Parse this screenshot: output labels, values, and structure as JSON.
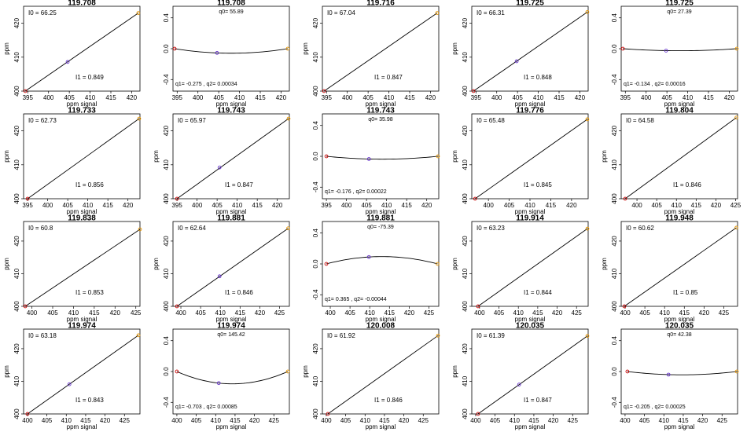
{
  "figure": {
    "axis_label_x": "ppm signal",
    "axis_label_y": "ppm",
    "colors": {
      "line": "#000000",
      "point_low": "#cc0000",
      "point_mid": "#6633cc",
      "point_high": "#e69500"
    }
  },
  "chart_data": [
    {
      "type": "line",
      "title": "119.708",
      "xlabel": "ppm signal",
      "ylabel": "ppm",
      "xlim": [
        394,
        422
      ],
      "ylim": [
        400,
        425
      ],
      "xticks": [
        "395",
        "400",
        "405",
        "410",
        "415",
        "420"
      ],
      "yticks": [
        "400",
        "410",
        "420"
      ],
      "x": [
        394.4,
        404.6,
        421.6
      ],
      "y": [
        400.0,
        408.6,
        423.0
      ],
      "label_tl": "I0 =  66.25",
      "label_br": "I1 =  0.849"
    },
    {
      "type": "line",
      "title": "119.708",
      "xlabel": "ppm signal",
      "ylabel": "",
      "xlim": [
        394,
        422
      ],
      "ylim": [
        -0.55,
        0.55
      ],
      "xticks": [
        "395",
        "400",
        "405",
        "410",
        "415",
        "420"
      ],
      "yticks": [
        "-0.4",
        "0.0",
        "0.4"
      ],
      "x": [
        394.4,
        404.6,
        421.6
      ],
      "y": [
        0.0,
        -0.055,
        0.0
      ],
      "label_top": "q0= 55.89",
      "label_bl": "q1= -0.275 ,  q2= 0.00034"
    },
    {
      "type": "line",
      "title": "119.716",
      "xlabel": "ppm signal",
      "ylabel": "ppm",
      "xlim": [
        394,
        422
      ],
      "ylim": [
        400,
        425
      ],
      "xticks": [
        "395",
        "400",
        "405",
        "410",
        "415",
        "420"
      ],
      "yticks": [
        "400",
        "410",
        "420"
      ],
      "x": [
        394.4,
        421.6
      ],
      "y": [
        400.0,
        423.0
      ],
      "label_tl": "I0 =  67.04",
      "label_br": "I1 =  0.847"
    },
    {
      "type": "line",
      "title": "119.725",
      "xlabel": "ppm signal",
      "ylabel": "ppm",
      "xlim": [
        394,
        422
      ],
      "ylim": [
        400,
        425
      ],
      "xticks": [
        "395",
        "400",
        "405",
        "410",
        "415",
        "420"
      ],
      "yticks": [
        "400",
        "410",
        "420"
      ],
      "x": [
        394.4,
        404.8,
        421.8
      ],
      "y": [
        400.0,
        408.8,
        423.3
      ],
      "label_tl": "I0 =  66.31",
      "label_br": "I1 =  0.848"
    },
    {
      "type": "line",
      "title": "119.725",
      "xlabel": "ppm signal",
      "ylabel": "",
      "xlim": [
        394,
        422
      ],
      "ylim": [
        -0.55,
        0.55
      ],
      "xticks": [
        "395",
        "400",
        "405",
        "410",
        "415",
        "420"
      ],
      "yticks": [
        "-0.4",
        "0.0",
        "0.4"
      ],
      "x": [
        394.4,
        404.8,
        421.8
      ],
      "y": [
        0.0,
        -0.025,
        0.0
      ],
      "label_top": "q0= 27.39",
      "label_bl": "q1= -0.134 ,  q2= 0.00016"
    },
    {
      "type": "line",
      "title": "119.733",
      "xlabel": "ppm signal",
      "ylabel": "ppm",
      "xlim": [
        394,
        423
      ],
      "ylim": [
        400,
        425
      ],
      "xticks": [
        "395",
        "400",
        "405",
        "410",
        "415",
        "420"
      ],
      "yticks": [
        "400",
        "410",
        "420"
      ],
      "x": [
        395.0,
        422.8
      ],
      "y": [
        400.0,
        423.6
      ],
      "label_tl": "I0 =  62.73",
      "label_br": "I1 =  0.856"
    },
    {
      "type": "line",
      "title": "119.743",
      "xlabel": "ppm signal",
      "ylabel": "ppm",
      "xlim": [
        394,
        423
      ],
      "ylim": [
        400,
        425
      ],
      "xticks": [
        "395",
        "400",
        "405",
        "410",
        "415",
        "420"
      ],
      "yticks": [
        "400",
        "410",
        "420"
      ],
      "x": [
        395.0,
        405.6,
        422.8
      ],
      "y": [
        400.0,
        409.2,
        423.6
      ],
      "label_tl": "I0 =  65.97",
      "label_br": "I1 =  0.847"
    },
    {
      "type": "line",
      "title": "119.743",
      "xlabel": "ppm signal",
      "ylabel": "",
      "xlim": [
        394,
        423
      ],
      "ylim": [
        -0.55,
        0.55
      ],
      "xticks": [
        "395",
        "400",
        "405",
        "410",
        "415",
        "420"
      ],
      "yticks": [
        "-0.4",
        "0.0",
        "0.4"
      ],
      "x": [
        395.0,
        405.6,
        422.8
      ],
      "y": [
        0.0,
        -0.035,
        0.0
      ],
      "label_top": "q0= 35.98",
      "label_bl": "q1= -0.176 ,  q2= 0.00022"
    },
    {
      "type": "line",
      "title": "119.776",
      "xlabel": "ppm signal",
      "ylabel": "ppm",
      "xlim": [
        396,
        424
      ],
      "ylim": [
        400,
        425
      ],
      "xticks": [
        "400",
        "405",
        "410",
        "415",
        "420"
      ],
      "yticks": [
        "400",
        "410",
        "420"
      ],
      "x": [
        396.8,
        423.8
      ],
      "y": [
        400.0,
        423.4
      ],
      "label_tl": "I0 =  65.48",
      "label_br": "I1 =  0.845"
    },
    {
      "type": "line",
      "title": "119.804",
      "xlabel": "ppm signal",
      "ylabel": "ppm",
      "xlim": [
        396,
        425.5
      ],
      "ylim": [
        400,
        425
      ],
      "xticks": [
        "400",
        "405",
        "410",
        "415",
        "420",
        "425"
      ],
      "yticks": [
        "400",
        "410",
        "420"
      ],
      "x": [
        397.0,
        425.2
      ],
      "y": [
        400.0,
        423.9
      ],
      "label_tl": "I0 =  64.58",
      "label_br": "I1 =  0.846"
    },
    {
      "type": "line",
      "title": "119.838",
      "xlabel": "ppm signal",
      "ylabel": "ppm",
      "xlim": [
        398,
        426
      ],
      "ylim": [
        400,
        426
      ],
      "xticks": [
        "400",
        "405",
        "410",
        "415",
        "420",
        "425"
      ],
      "yticks": [
        "400",
        "410",
        "420"
      ],
      "x": [
        398.4,
        426.0
      ],
      "y": [
        400.0,
        423.6
      ],
      "label_tl": "I0 =  60.8",
      "label_br": "I1 =  0.853"
    },
    {
      "type": "line",
      "title": "119.881",
      "xlabel": "ppm signal",
      "ylabel": "ppm",
      "xlim": [
        398,
        427.5
      ],
      "ylim": [
        400,
        426
      ],
      "xticks": [
        "400",
        "405",
        "410",
        "415",
        "420",
        "425"
      ],
      "yticks": [
        "400",
        "410",
        "420"
      ],
      "x": [
        399.0,
        409.8,
        427.2
      ],
      "y": [
        400.0,
        409.2,
        423.9
      ],
      "label_tl": "I0 =  62.64",
      "label_br": "I1 =  0.846"
    },
    {
      "type": "line",
      "title": "119.881",
      "xlabel": "ppm signal",
      "ylabel": "",
      "xlim": [
        398,
        427.5
      ],
      "ylim": [
        -0.55,
        0.55
      ],
      "xticks": [
        "400",
        "405",
        "410",
        "415",
        "420",
        "425"
      ],
      "yticks": [
        "-0.4",
        "0.0",
        "0.4"
      ],
      "x": [
        399.0,
        409.8,
        427.2
      ],
      "y": [
        0.0,
        0.09,
        0.0
      ],
      "label_top": "q0= -75.39",
      "label_bl": "q1= 0.365 ,  q2= -0.00044"
    },
    {
      "type": "line",
      "title": "119.914",
      "xlabel": "ppm signal",
      "ylabel": "ppm",
      "xlim": [
        398,
        428
      ],
      "ylim": [
        400,
        426
      ],
      "xticks": [
        "400",
        "405",
        "410",
        "415",
        "420",
        "425"
      ],
      "yticks": [
        "400",
        "410",
        "420"
      ],
      "x": [
        399.6,
        427.8
      ],
      "y": [
        400.0,
        423.8
      ],
      "label_tl": "I0 =  63.23",
      "label_br": "I1 =  0.844"
    },
    {
      "type": "line",
      "title": "119.948",
      "xlabel": "ppm signal",
      "ylabel": "ppm",
      "xlim": [
        399,
        428.5
      ],
      "ylim": [
        400,
        426
      ],
      "xticks": [
        "400",
        "405",
        "410",
        "415",
        "420",
        "425"
      ],
      "yticks": [
        "400",
        "410",
        "420"
      ],
      "x": [
        399.8,
        428.2
      ],
      "y": [
        400.0,
        424.1
      ],
      "label_tl": "I0 =  60.62",
      "label_br": "I1 =  0.85"
    },
    {
      "type": "line",
      "title": "119.974",
      "xlabel": "ppm signal",
      "ylabel": "ppm",
      "xlim": [
        399,
        429
      ],
      "ylim": [
        400,
        426
      ],
      "xticks": [
        "400",
        "405",
        "410",
        "415",
        "420",
        "425"
      ],
      "yticks": [
        "400",
        "410",
        "420"
      ],
      "x": [
        400.0,
        410.8,
        428.6
      ],
      "y": [
        400.0,
        409.1,
        424.1
      ],
      "label_tl": "I0 =  63.18",
      "label_br": "I1 =  0.843"
    },
    {
      "type": "line",
      "title": "119.974",
      "xlabel": "ppm signal",
      "ylabel": "",
      "xlim": [
        399,
        429
      ],
      "ylim": [
        -0.55,
        0.55
      ],
      "xticks": [
        "400",
        "405",
        "410",
        "415",
        "420",
        "425"
      ],
      "yticks": [
        "-0.4",
        "0.0",
        "0.4"
      ],
      "x": [
        400.0,
        410.8,
        428.6
      ],
      "y": [
        0.0,
        -0.15,
        0.0
      ],
      "label_top": "q0= 145.42",
      "label_bl": "q1= -0.703 ,  q2= 0.00085"
    },
    {
      "type": "line",
      "title": "120.008",
      "xlabel": "ppm signal",
      "ylabel": "ppm",
      "xlim": [
        399,
        429
      ],
      "ylim": [
        400,
        426
      ],
      "xticks": [
        "400",
        "405",
        "410",
        "415",
        "420",
        "425"
      ],
      "yticks": [
        "400",
        "410",
        "420"
      ],
      "x": [
        400.4,
        428.8
      ],
      "y": [
        400.0,
        424.0
      ],
      "label_tl": "I0 =  61.92",
      "label_br": "I1 =  0.846"
    },
    {
      "type": "line",
      "title": "120.035",
      "xlabel": "ppm signal",
      "ylabel": "ppm",
      "xlim": [
        399,
        429
      ],
      "ylim": [
        400,
        426
      ],
      "xticks": [
        "400",
        "405",
        "410",
        "415",
        "420",
        "425"
      ],
      "yticks": [
        "400",
        "410",
        "420"
      ],
      "x": [
        400.6,
        411.2,
        428.8
      ],
      "y": [
        400.0,
        409.0,
        423.9
      ],
      "label_tl": "I0 =  61.39",
      "label_br": "I1 =  0.847"
    },
    {
      "type": "line",
      "title": "120.035",
      "xlabel": "ppm signal",
      "ylabel": "",
      "xlim": [
        399,
        429
      ],
      "ylim": [
        -0.55,
        0.55
      ],
      "xticks": [
        "400",
        "405",
        "410",
        "415",
        "420",
        "425"
      ],
      "yticks": [
        "-0.4",
        "0.0",
        "0.4"
      ],
      "x": [
        400.6,
        411.2,
        428.8
      ],
      "y": [
        0.0,
        -0.04,
        0.0
      ],
      "label_top": "q0= 42.38",
      "label_bl": "q1= -0.205 ,  q2= 0.00025"
    }
  ]
}
